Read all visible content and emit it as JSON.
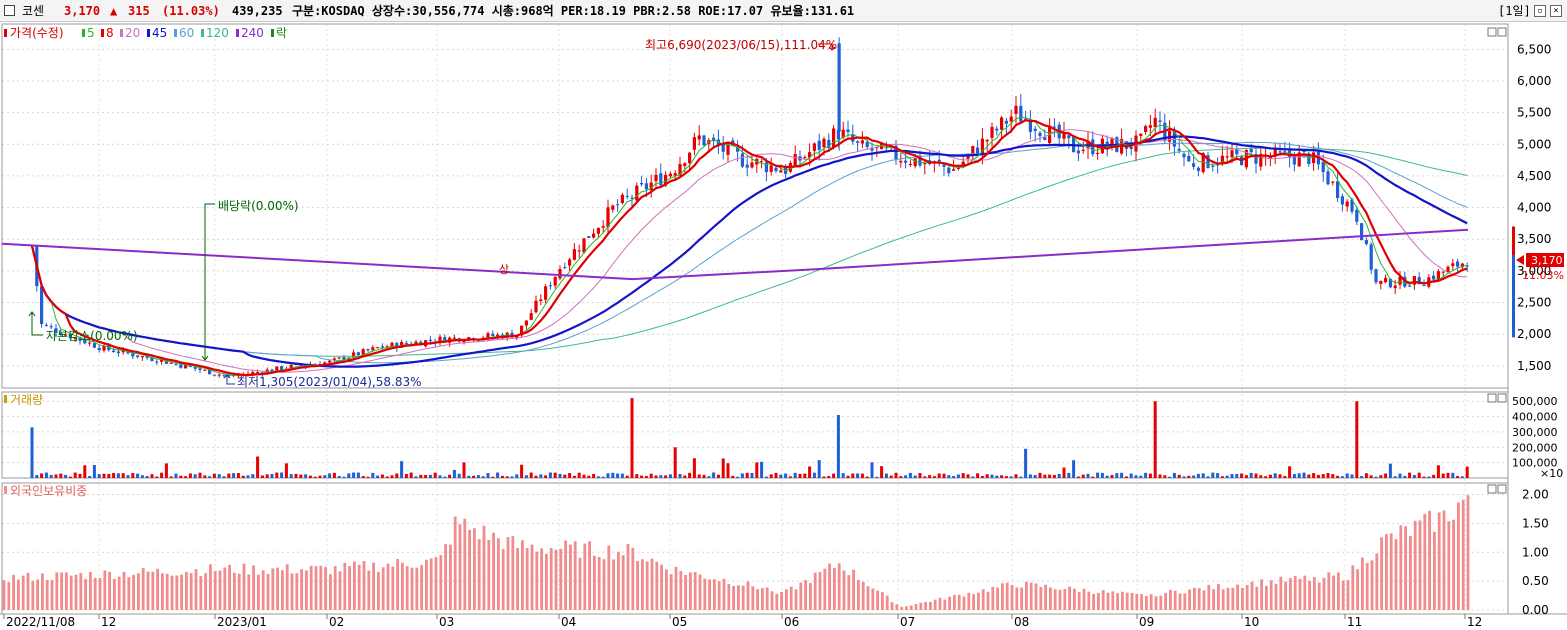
{
  "header": {
    "name": "코센",
    "price": "3,170",
    "change_arrow": "▲",
    "change": "315",
    "change_pct": "(11.03%)",
    "volume": "439,235",
    "info": "구분:KOSDAQ 상장수:30,556,774 시총:968억 PER:18.19 PBR:2.58 ROE:17.07 유보율:131.61",
    "period": "[1일]"
  },
  "legend": {
    "price_label": "가격(수정)",
    "ma_labels": [
      "5",
      "8",
      "20",
      "45",
      "60",
      "120",
      "240",
      "락"
    ],
    "volume_label": "거래량",
    "foreign_label": "외국인보유비중"
  },
  "annotations": {
    "high": "최고6,690(2023/06/15),111.04%",
    "low": "최저1,305(2023/01/04),58.83%",
    "dividend": "배당락(0.00%)",
    "capital": "자본감소(0.00%)",
    "current_price": "3,170",
    "current_pct": "11.03%",
    "sang": "상"
  },
  "colors": {
    "up": "#e60000",
    "down": "#1e5fd8",
    "ma5": "#2db42d",
    "ma8": "#e00000",
    "ma20": "#d070c0",
    "ma45": "#1414c8",
    "ma60": "#5aa0d0",
    "ma120": "#40b890",
    "ma240": "#8a2cc8",
    "foreign": "#f08c8c"
  },
  "chart_data": [
    {
      "type": "candlestick",
      "title": "가격(수정)",
      "y_ticks": [
        1500,
        2000,
        2500,
        3000,
        3500,
        4000,
        4500,
        5000,
        5500,
        6000,
        6500
      ],
      "y_tick_labels": [
        "1,500",
        "2,000",
        "2,500",
        "3,000",
        "3,500",
        "4,000",
        "4,500",
        "5,000",
        "5,500",
        "6,000",
        "6,500"
      ],
      "ylim": [
        1150,
        6900
      ],
      "x_labels": [
        "2022/11/08",
        "12",
        "2023/01",
        "02",
        "03",
        "04",
        "05",
        "06",
        "07",
        "08",
        "09",
        "10",
        "11",
        "12"
      ],
      "close_path": [
        [
          "2022/11/08",
          3400
        ],
        [
          "2022/11/16",
          2150
        ],
        [
          "2022/12",
          1780
        ],
        [
          "2022/12/15",
          1600
        ],
        [
          "2023/01/04",
          1330
        ],
        [
          "2023/01/20",
          1480
        ],
        [
          "2023/02",
          1560
        ],
        [
          "2023/02/15",
          1800
        ],
        [
          "2023/03",
          1920
        ],
        [
          "2023/03/20",
          2000
        ],
        [
          "2023/04",
          3100
        ],
        [
          "2023/04/15",
          4000
        ],
        [
          "2023/05",
          4600
        ],
        [
          "2023/05/08",
          5100
        ],
        [
          "2023/05/20",
          4750
        ],
        [
          "2023/06",
          4600
        ],
        [
          "2023/06/15",
          5200
        ],
        [
          "2023/06/20",
          4950
        ],
        [
          "2023/07",
          4800
        ],
        [
          "2023/07/15",
          4600
        ],
        [
          "2023/08",
          5500
        ],
        [
          "2023/08/15",
          4950
        ],
        [
          "2023/09",
          5000
        ],
        [
          "2023/09/05",
          5400
        ],
        [
          "2023/09/15",
          4700
        ],
        [
          "2023/10",
          4800
        ],
        [
          "2023/10/20",
          4800
        ],
        [
          "2023/11/03",
          3900
        ],
        [
          "2023/11/08",
          2800
        ],
        [
          "2023/11/20",
          2850
        ],
        [
          "2023/12/01",
          3170
        ]
      ],
      "high": {
        "date": "2023/06/15",
        "value": 6690
      },
      "low": {
        "date": "2023/01/04",
        "value": 1305
      },
      "ma240": [
        [
          "2022/11/08",
          3430
        ],
        [
          "2023/04/20",
          2870
        ],
        [
          "2023/06/10",
          3030
        ],
        [
          "2023/12/01",
          3650
        ]
      ],
      "ma120_end": 4470,
      "ma60_end": 4050,
      "ma45_end": 3780
    },
    {
      "type": "bar",
      "title": "거래량",
      "y_ticks": [
        100000,
        200000,
        300000,
        400000,
        500000
      ],
      "y_tick_labels": [
        "100,000",
        "200,000",
        "300,000",
        "400,000",
        "500,000"
      ],
      "ylim": [
        0,
        560000
      ],
      "unit": "×10",
      "spikes": [
        [
          "2022/11/08",
          330000
        ],
        [
          "2023/01/12",
          140000
        ],
        [
          "2023/02/20",
          110000
        ],
        [
          "2023/04/20",
          520000
        ],
        [
          "2023/05/01",
          200000
        ],
        [
          "2023/06/15",
          410000
        ],
        [
          "2023/08/03",
          190000
        ],
        [
          "2023/09/05",
          500000
        ],
        [
          "2023/11/03",
          500000
        ]
      ]
    },
    {
      "type": "bar",
      "title": "외국인보유비중",
      "y_ticks": [
        0.0,
        0.5,
        1.0,
        1.5,
        2.0
      ],
      "y_tick_labels": [
        "0.00",
        "0.50",
        "1.00",
        "1.50",
        "2.00"
      ],
      "ylim": [
        0,
        2.2
      ],
      "values_path": [
        [
          "2022/11/08",
          0.55
        ],
        [
          "2023/01/01",
          0.7
        ],
        [
          "2023/02/01",
          0.7
        ],
        [
          "2023/03/01",
          0.85
        ],
        [
          "2023/03/05",
          1.5
        ],
        [
          "2023/03/20",
          1.1
        ],
        [
          "2023/04/20",
          1.0
        ],
        [
          "2023/05/01",
          0.7
        ],
        [
          "2023/06/01",
          0.3
        ],
        [
          "2023/06/15",
          0.8
        ],
        [
          "2023/07/01",
          0.05
        ],
        [
          "2023/08/01",
          0.45
        ],
        [
          "2023/09/01",
          0.25
        ],
        [
          "2023/10/01",
          0.45
        ],
        [
          "2023/11/01",
          0.6
        ],
        [
          "2023/11/10",
          1.2
        ],
        [
          "2023/11/25",
          1.6
        ],
        [
          "2023/12/01",
          1.95
        ]
      ]
    }
  ]
}
